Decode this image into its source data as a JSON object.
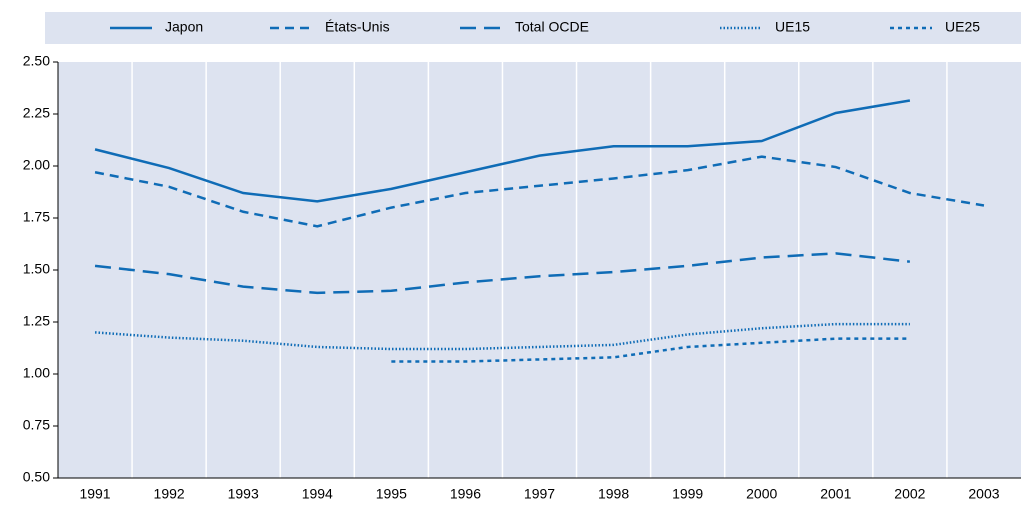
{
  "chart_data": {
    "type": "line",
    "categories": [
      "1991",
      "1992",
      "1993",
      "1994",
      "1995",
      "1996",
      "1997",
      "1998",
      "1999",
      "2000",
      "2001",
      "2002",
      "2003"
    ],
    "series": [
      {
        "name": "Japon",
        "color": "#0f6cb6",
        "dash": "solid",
        "values": [
          2.08,
          1.99,
          1.87,
          1.83,
          1.89,
          1.97,
          2.05,
          2.095,
          2.095,
          2.12,
          2.255,
          2.315,
          null
        ]
      },
      {
        "name": "États-Unis",
        "color": "#0f6cb6",
        "dash": "dashed",
        "values": [
          1.97,
          1.9,
          1.78,
          1.71,
          1.8,
          1.87,
          1.905,
          1.94,
          1.98,
          2.045,
          1.995,
          1.87,
          1.81
        ]
      },
      {
        "name": "Total OCDE",
        "color": "#0f6cb6",
        "dash": "long-dashed",
        "values": [
          1.52,
          1.48,
          1.42,
          1.39,
          1.4,
          1.44,
          1.47,
          1.49,
          1.52,
          1.56,
          1.58,
          1.54,
          null
        ]
      },
      {
        "name": "UE15",
        "color": "#0f6cb6",
        "dash": "dotted",
        "values": [
          1.2,
          1.175,
          1.16,
          1.13,
          1.12,
          1.12,
          1.13,
          1.14,
          1.19,
          1.22,
          1.24,
          1.24,
          null
        ]
      },
      {
        "name": "UE25",
        "color": "#0f6cb6",
        "dash": "short-dashed",
        "values": [
          null,
          null,
          null,
          null,
          1.06,
          1.06,
          1.07,
          1.08,
          1.13,
          1.15,
          1.17,
          1.17,
          null
        ]
      }
    ],
    "ylim": [
      0.5,
      2.5
    ],
    "yticks": [
      {
        "value": 0.5,
        "label": "0.50"
      },
      0.75,
      {
        "value": 1,
        "label": "1.00"
      },
      1.25,
      {
        "value": 1.5,
        "label": "1.50"
      },
      1.75,
      {
        "value": 2,
        "label": "2.00"
      },
      2.25,
      {
        "value": 2.5,
        "label": "2.50"
      }
    ]
  }
}
